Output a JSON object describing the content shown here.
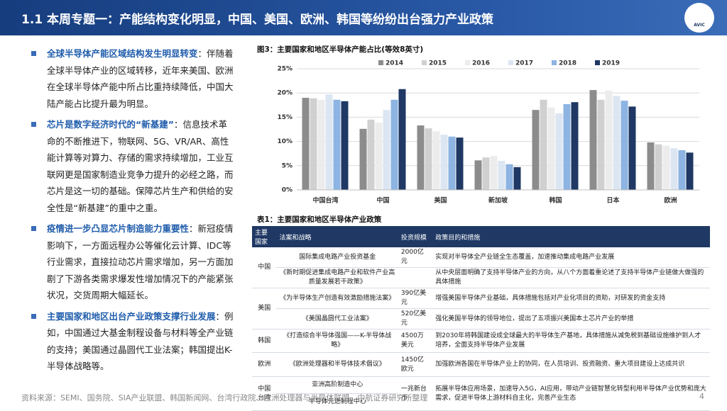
{
  "header": {
    "title": "1.1 本周专题一：产能结构变化明显，中国、美国、欧洲、韩国等纷纷出台强力产业政策",
    "logo_text": "AVIC"
  },
  "bullets": [
    {
      "heading": "全球半导体产能区域结构发生明显转变",
      "body": "：伴随着全球半导体产业的区域转移，近年来美国、欧洲在全球半导体产能中所占比重持续降低，中国大陆产能占比提升最为明显。"
    },
    {
      "heading": "芯片是数字经济时代的“新基建”",
      "body": "：信息技术革命的不断推进下，物联网、5G、VR/AR、高性能计算等对算力、存储的需求持续增加，工业互联网更是国家制造业竞争力提升的必经之路，而芯片是这一切的基础。保障芯片生产和供给的安全性是“新基建”的重中之重。"
    },
    {
      "heading": "疫情进一步凸显芯片制造能力重要性",
      "body": "：新冠疫情影响下，一方面远程办公等催化云计算、IDC等行业需求，直接拉动芯片需求增加，另一方面加剧了下游各类需求爆发性增加情况下的产能紧张状况，交货周期大幅延长。"
    },
    {
      "heading": "主要国家和地区出台产业政策支撑行业发展",
      "body": "：例如，中国通过大基金制程设备与材料等全产业链的支持；美国通过晶圆代工业法案；韩国提出K-半导体战略等。"
    }
  ],
  "chart_data": {
    "type": "bar",
    "title": "图3：主要国家和地区半导体产能占比(等效8英寸)",
    "categories": [
      "中国台湾",
      "中国",
      "美国",
      "新加坡",
      "韩国",
      "日本",
      "欧洲"
    ],
    "series": [
      {
        "name": "2014",
        "color": "#8c8c8c",
        "values": [
          19.0,
          12.6,
          13.3,
          6.1,
          16.5,
          20.6,
          9.8
        ]
      },
      {
        "name": "2015",
        "color": "#d0d0d0",
        "values": [
          18.9,
          14.5,
          12.7,
          6.7,
          18.6,
          18.6,
          9.4
        ]
      },
      {
        "name": "2016",
        "color": "#ececec",
        "values": [
          18.6,
          13.9,
          12.1,
          7.0,
          17.0,
          20.5,
          9.1
        ]
      },
      {
        "name": "2017",
        "color": "#dce6f2",
        "values": [
          19.7,
          16.5,
          11.4,
          6.0,
          15.8,
          19.4,
          8.6
        ]
      },
      {
        "name": "2018",
        "color": "#8db4e2",
        "values": [
          18.6,
          18.6,
          11.0,
          5.3,
          17.7,
          18.4,
          8.2
        ]
      },
      {
        "name": "2019",
        "color": "#1f3864",
        "values": [
          18.3,
          20.8,
          10.8,
          4.7,
          18.1,
          17.2,
          7.7
        ]
      }
    ],
    "ylim": [
      0,
      25
    ],
    "yticks": [
      {
        "value": 0,
        "label": "0%"
      },
      {
        "value": 5,
        "label": "5%"
      },
      {
        "value": 10,
        "label": "10%"
      },
      {
        "value": 15,
        "label": "15%"
      },
      {
        "value": 20,
        "label": "20%"
      },
      {
        "value": 25,
        "label": "25%"
      }
    ],
    "grid": true
  },
  "table": {
    "title": "表1：主要国家和地区半导体产业政策",
    "columns": [
      "主要国家",
      "法案和战略",
      "投资规模",
      "政策目的和措施"
    ],
    "groups": [
      {
        "country": "中国",
        "items": [
          {
            "policy": "国际集成电路产业投资基金",
            "investment": "2000亿元",
            "goal": "实现对半导体全产业链全生态覆盖，加速推动集成电路产业发展"
          },
          {
            "policy": "《新时期促进集成电路产业和软件产业高质量发展若干政策》",
            "goal": "从中央层面明确了支持半导体产业的方向，从八个方面着重论述了支持半导体产业链做大做强的具体措施"
          }
        ]
      },
      {
        "country": "美国",
        "items": [
          {
            "policy": "《为半导体生产创造有效激励措施法案》",
            "investment": "390亿美元",
            "goal": "增强美国半导体产业基础，具体措施包括对产业化项目的资助，对研发的资金支持"
          },
          {
            "policy": "《美国晶圆代工业法案》",
            "investment": "520亿美元",
            "goal": "强化美国半导体的领导地位，提出了五项振兴美国本土芯片产业的举措"
          }
        ]
      },
      {
        "country": "韩国",
        "items": [
          {
            "policy": "《打造综合半导体强国——K-半导体战略》",
            "investment": "4500万美元",
            "goal": "到2030年将韩国建设成全球最大的半导体生产基地，具体措施从减免税到基础设施维护到人才培养，全面支持半导体产业发展"
          }
        ]
      },
      {
        "country": "欧洲",
        "items": [
          {
            "policy": "《欧洲处理器和半导体技术倡议》",
            "investment": "1450亿欧元",
            "goal": "加强欧洲各国在半导体产业上的协同，在人员培训、投资融资、重大项目建设上达成共识"
          }
        ]
      },
      {
        "country": "中国台湾",
        "investment": "一兆新台币",
        "goal": "拓展半导体应用场景，加速导入5G，AI应用，带动产业链智慧化转型利用半导体产业优势和庞大需求，促进半导体上游材料自主化，完善产业生态",
        "items": [
          {
            "policy": "亚洲高阶制造中心"
          },
          {
            "policy": "半导体先进制程中心"
          }
        ]
      }
    ]
  },
  "footer": {
    "source": "资料来源：SEMI、国务院、SIA产业联盟、韩国新闻网、台湾行政院、欧洲处理器与半导体联盟、中航证券研究所整理",
    "page": "4"
  }
}
